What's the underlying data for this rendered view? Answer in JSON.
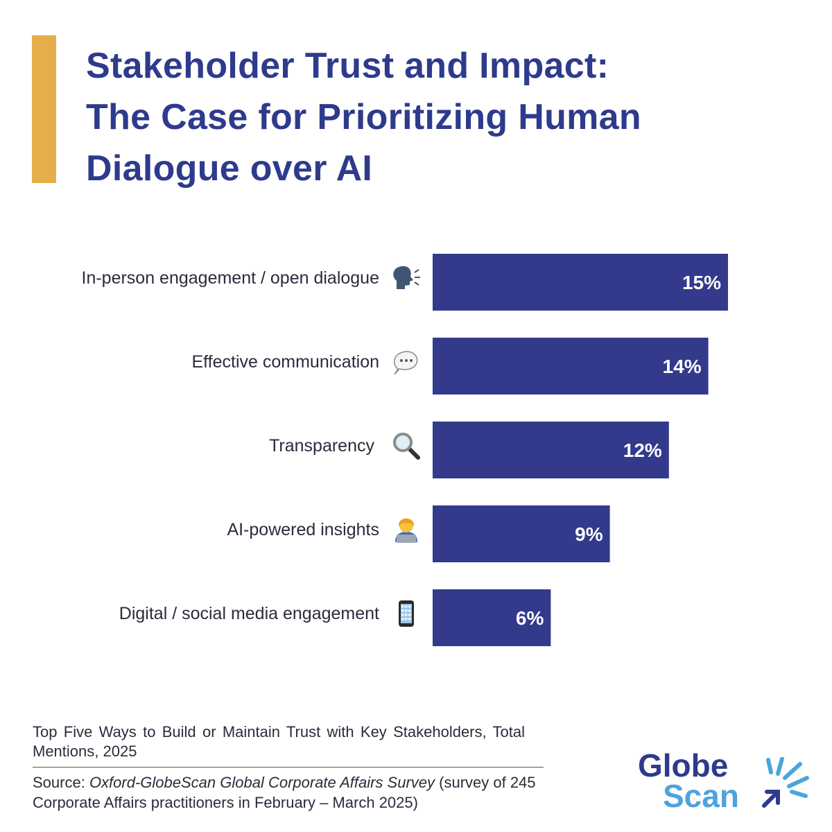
{
  "brand": {
    "accent_color": "#E6AE4A",
    "title_color": "#2E3A8C",
    "bar_color": "#333A8C"
  },
  "title_lines": [
    "Stakeholder Trust and Impact:",
    "The Case for Prioritizing Human",
    "Dialogue over AI"
  ],
  "chart_data": {
    "type": "bar",
    "orientation": "horizontal",
    "categories": [
      "In-person engagement / open dialogue",
      "Effective communication",
      "Transparency",
      "AI-powered insights",
      "Digital / social media engagement"
    ],
    "icons": [
      "speaking-head-icon",
      "speech-bubble-icon",
      "magnifying-glass-icon",
      "technologist-icon",
      "mobile-phone-icon"
    ],
    "values": [
      15,
      14,
      12,
      9,
      6
    ],
    "value_labels": [
      "15%",
      "14%",
      "12%",
      "9%",
      "6%"
    ],
    "unit": "%",
    "xlim": [
      0,
      15
    ],
    "grid": false,
    "legend": "none"
  },
  "caption": "Top Five Ways to Build or Maintain Trust with Key Stakeholders, Total Mentions, 2025",
  "source": {
    "prefix": "Source: ",
    "survey": "Oxford-GlobeScan Global Corporate Affairs Survey",
    "suffix": " (survey of 245 Corporate Affairs practitioners in February – March 2025)"
  },
  "logo": {
    "line1": "Globe",
    "line2": "Scan",
    "color_dark": "#2E3A8C",
    "color_light": "#4DA3DD"
  }
}
